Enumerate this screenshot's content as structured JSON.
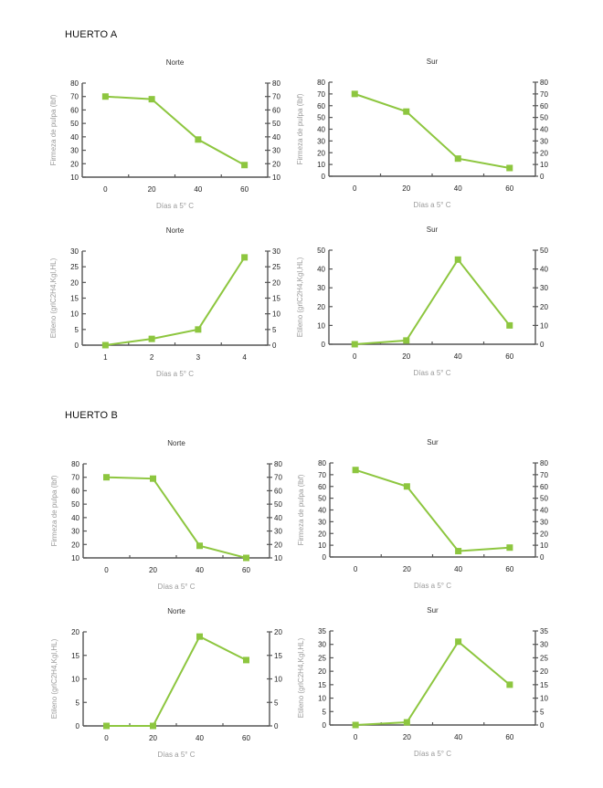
{
  "sections": [
    {
      "title": "HUERTO A"
    },
    {
      "title": "HUERTO B"
    }
  ],
  "colors": {
    "series": "#8dc63f",
    "axis": "#555555",
    "axis_label": "#9a9a9a"
  },
  "chart_data": [
    {
      "type": "line",
      "section": "HUERTO A",
      "title": "Norte",
      "xlabel": "Días a 5° C",
      "ylabel": "Firmeza de pulpa (lbf)",
      "categories": [
        "0",
        "20",
        "40",
        "60"
      ],
      "values": [
        70,
        68,
        38,
        19
      ],
      "ylim": [
        10,
        80
      ],
      "ystep": 10,
      "yticks": [
        "10",
        "20",
        "30",
        "40",
        "50",
        "60",
        "70",
        "80"
      ],
      "secondary_axis": true,
      "grid": false,
      "marker": "square"
    },
    {
      "type": "line",
      "section": "HUERTO A",
      "title": "Sur",
      "xlabel": "Días a 5° C",
      "ylabel": "Firmeza de pulpa (lbf)",
      "categories": [
        "0",
        "20",
        "40",
        "60"
      ],
      "values": [
        70,
        55,
        15,
        7
      ],
      "ylim": [
        0,
        80
      ],
      "ystep": 10,
      "yticks": [
        "0",
        "10",
        "20",
        "30",
        "40",
        "50",
        "60",
        "70",
        "80"
      ],
      "secondary_axis": true,
      "grid": false,
      "marker": "square"
    },
    {
      "type": "line",
      "section": "HUERTO A",
      "title": "Norte",
      "xlabel": "Días a 5° C",
      "ylabel": "Etileno (grlC2H4,Kgl,HL)",
      "categories": [
        "1",
        "2",
        "3",
        "4"
      ],
      "values": [
        0,
        2,
        5,
        28
      ],
      "ylim": [
        0,
        30
      ],
      "ystep": 5,
      "yticks": [
        "0",
        "5",
        "10",
        "15",
        "20",
        "25",
        "30"
      ],
      "secondary_axis": true,
      "grid": false,
      "marker": "square"
    },
    {
      "type": "line",
      "section": "HUERTO A",
      "title": "Sur",
      "xlabel": "Días a 5° C",
      "ylabel": "Etileno (grlC2H4,Kgl,HL)",
      "categories": [
        "0",
        "20",
        "40",
        "60"
      ],
      "values": [
        0,
        2,
        45,
        10
      ],
      "ylim": [
        0,
        50
      ],
      "ystep": 10,
      "yticks": [
        "0",
        "10",
        "20",
        "30",
        "40",
        "50"
      ],
      "secondary_axis": true,
      "grid": false,
      "marker": "square"
    },
    {
      "type": "line",
      "section": "HUERTO B",
      "title": "Norte",
      "xlabel": "Días a 5° C",
      "ylabel": "Firmeza de pulpa (lbf)",
      "categories": [
        "0",
        "20",
        "40",
        "60"
      ],
      "values": [
        70,
        69,
        19,
        10
      ],
      "ylim": [
        10,
        80
      ],
      "ystep": 10,
      "yticks": [
        "10",
        "20",
        "30",
        "40",
        "50",
        "60",
        "70",
        "80"
      ],
      "secondary_axis": true,
      "grid": false,
      "marker": "square"
    },
    {
      "type": "line",
      "section": "HUERTO B",
      "title": "Sur",
      "xlabel": "Días a 5° C",
      "ylabel": "Firmeza de pulpa (lbf)",
      "categories": [
        "0",
        "20",
        "40",
        "60"
      ],
      "values": [
        74,
        60,
        5,
        8
      ],
      "ylim": [
        0,
        80
      ],
      "ystep": 10,
      "yticks": [
        "0",
        "10",
        "20",
        "30",
        "40",
        "50",
        "60",
        "70",
        "80"
      ],
      "secondary_axis": true,
      "grid": false,
      "marker": "square"
    },
    {
      "type": "line",
      "section": "HUERTO B",
      "title": "Norte",
      "xlabel": "Días a 5° C",
      "ylabel": "Etileno (grlC2H4,Kgl,HL)",
      "categories": [
        "0",
        "20",
        "40",
        "60"
      ],
      "values": [
        0,
        0,
        19,
        14
      ],
      "ylim": [
        0,
        20
      ],
      "ystep": 5,
      "yticks": [
        "0",
        "5",
        "10",
        "15",
        "20"
      ],
      "secondary_axis": true,
      "grid": false,
      "marker": "square"
    },
    {
      "type": "line",
      "section": "HUERTO B",
      "title": "Sur",
      "xlabel": "Días a 5° C",
      "ylabel": "Etileno (grlC2H4,Kgl,HL)",
      "categories": [
        "0",
        "20",
        "40",
        "60"
      ],
      "values": [
        0,
        1,
        31,
        15
      ],
      "ylim": [
        0,
        35
      ],
      "ystep": 5,
      "yticks": [
        "0",
        "5",
        "10",
        "15",
        "20",
        "25",
        "30",
        "35"
      ],
      "secondary_axis": true,
      "grid": false,
      "marker": "square"
    }
  ]
}
